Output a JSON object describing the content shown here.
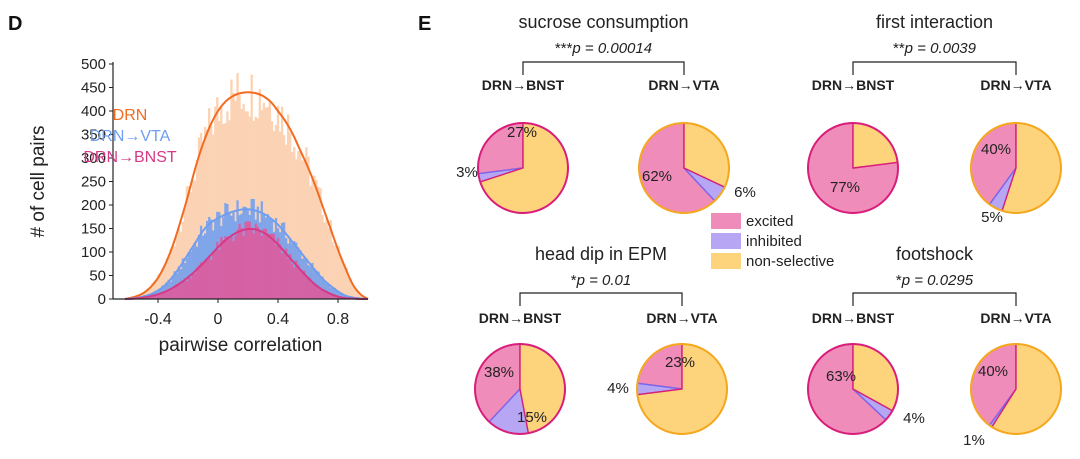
{
  "figure": {
    "panel_d_letter": "D",
    "panel_e_letter": "E"
  },
  "colors": {
    "drn": "#f26b21",
    "drn_fill": "#fbd3b4",
    "vta": "#6f9ef0",
    "bnst": "#d63a86",
    "bnst_fill": "#dc5c9d",
    "excited": "#ef8cba",
    "inhibited": "#b6a6f3",
    "nonselective": "#fdd37c",
    "ring_bnst": "#d81e7a",
    "ring_vta": "#f4a81c",
    "wedge_inhibited": "#7868ee"
  },
  "chart_data": [
    {
      "type": "area",
      "panel": "D",
      "xlabel": "pairwise correlation",
      "ylabel": "# of cell pairs",
      "xlim": [
        -0.7,
        1.0
      ],
      "ylim": [
        0,
        500
      ],
      "xticks": [
        -0.4,
        0,
        0.4,
        0.8
      ],
      "xtick_labels": [
        "-0.4",
        "0",
        "0.4",
        "0.8"
      ],
      "yticks": [
        0,
        50,
        100,
        150,
        200,
        250,
        300,
        350,
        400,
        450,
        500
      ],
      "ytick_labels": [
        "0",
        "50",
        "100",
        "150",
        "200",
        "250",
        "300",
        "350",
        "400",
        "450",
        "500"
      ],
      "legend": [
        "DRN",
        "DRN→VTA",
        "DRN→BNST"
      ],
      "x": [
        -0.62,
        -0.55,
        -0.5,
        -0.45,
        -0.4,
        -0.35,
        -0.3,
        -0.25,
        -0.2,
        -0.15,
        -0.1,
        -0.05,
        0,
        0.05,
        0.1,
        0.15,
        0.2,
        0.25,
        0.3,
        0.35,
        0.4,
        0.45,
        0.5,
        0.55,
        0.6,
        0.65,
        0.7,
        0.75,
        0.8,
        0.85,
        0.9,
        0.95,
        1.0
      ],
      "series": [
        {
          "name": "DRN",
          "values": [
            0,
            5,
            12,
            25,
            45,
            75,
            115,
            165,
            220,
            280,
            330,
            370,
            400,
            420,
            432,
            438,
            440,
            438,
            432,
            420,
            400,
            378,
            350,
            315,
            280,
            240,
            195,
            150,
            105,
            65,
            30,
            10,
            0
          ]
        },
        {
          "name": "DRN→VTA",
          "values": [
            0,
            2,
            5,
            10,
            18,
            30,
            48,
            70,
            95,
            120,
            145,
            162,
            172,
            180,
            186,
            190,
            191,
            188,
            182,
            172,
            158,
            140,
            120,
            100,
            80,
            60,
            42,
            28,
            16,
            7,
            3,
            1,
            0
          ]
        },
        {
          "name": "DRN→BNST",
          "values": [
            0,
            1,
            3,
            6,
            10,
            16,
            24,
            34,
            46,
            60,
            76,
            93,
            110,
            125,
            137,
            145,
            149,
            148,
            142,
            131,
            116,
            98,
            80,
            62,
            45,
            30,
            19,
            11,
            5,
            2,
            1,
            0,
            0
          ]
        }
      ]
    },
    {
      "type": "pie",
      "panel": "E",
      "categories": [
        "excited",
        "inhibited",
        "non-selective"
      ],
      "legend": [
        "excited",
        "inhibited",
        "non-selective"
      ],
      "groups": [
        {
          "title": "sucrose consumption",
          "stat_stars": "***",
          "stat_p": "p = 0.00014",
          "pies": [
            {
              "label": "DRN→BNST",
              "values": [
                27,
                3,
                70
              ],
              "labels": [
                "27%",
                "3%",
                ""
              ]
            },
            {
              "label": "DRN→VTA",
              "values": [
                62,
                6,
                32
              ],
              "labels": [
                "62%",
                "6%",
                ""
              ]
            }
          ]
        },
        {
          "title": "first interaction",
          "stat_stars": "**",
          "stat_p": "p = 0.0039",
          "pies": [
            {
              "label": "DRN→BNST",
              "values": [
                77,
                0,
                23
              ],
              "labels": [
                "77%",
                "",
                ""
              ]
            },
            {
              "label": "DRN→VTA",
              "values": [
                40,
                5,
                55
              ],
              "labels": [
                "40%",
                "5%",
                ""
              ]
            }
          ]
        },
        {
          "title": "head dip in EPM",
          "stat_stars": "*",
          "stat_p": "p = 0.01",
          "pies": [
            {
              "label": "DRN→BNST",
              "values": [
                38,
                15,
                47
              ],
              "labels": [
                "38%",
                "15%",
                ""
              ]
            },
            {
              "label": "DRN→VTA",
              "values": [
                23,
                4,
                73
              ],
              "labels": [
                "23%",
                "4%",
                ""
              ]
            }
          ]
        },
        {
          "title": "footshock",
          "stat_stars": "*",
          "stat_p": "p = 0.0295",
          "pies": [
            {
              "label": "DRN→BNST",
              "values": [
                63,
                4,
                33
              ],
              "labels": [
                "63%",
                "4%",
                ""
              ]
            },
            {
              "label": "DRN→VTA",
              "values": [
                40,
                1,
                59
              ],
              "labels": [
                "40%",
                "1%",
                ""
              ]
            }
          ]
        }
      ]
    }
  ]
}
